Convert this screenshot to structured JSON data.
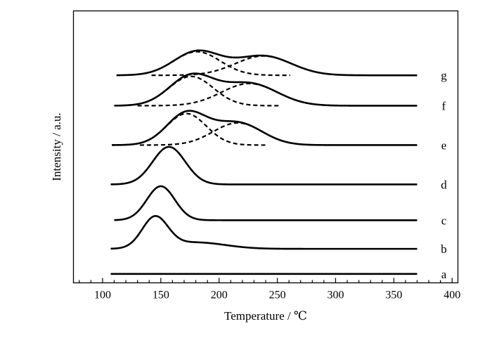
{
  "chart_data": {
    "type": "line",
    "xlabel": "Temperature / ℃",
    "ylabel": "Intensity / a.u.",
    "xlim": [
      75,
      405
    ],
    "xticks": [
      100,
      150,
      200,
      250,
      300,
      350,
      400
    ],
    "x_minor_step": 10,
    "ylim": [
      0,
      7.6
    ],
    "grid": false,
    "series": [
      {
        "name": "a",
        "baseline": 0.25,
        "x_start": 107,
        "x_end": 370,
        "peaks": []
      },
      {
        "name": "b",
        "baseline": 0.95,
        "x_start": 107,
        "x_end": 370,
        "peaks": [
          {
            "center": 145,
            "height": 0.85,
            "width": 11
          },
          {
            "center": 180,
            "height": 0.18,
            "width": 25
          }
        ]
      },
      {
        "name": "c",
        "baseline": 1.75,
        "x_start": 110,
        "x_end": 370,
        "peaks": [
          {
            "center": 150,
            "height": 0.95,
            "width": 12
          }
        ]
      },
      {
        "name": "d",
        "baseline": 2.75,
        "x_start": 107,
        "x_end": 370,
        "peaks": [
          {
            "center": 157,
            "height": 1.05,
            "width": 14
          }
        ]
      },
      {
        "name": "e",
        "baseline": 3.85,
        "x_start": 108,
        "x_end": 370,
        "peaks": [
          {
            "center": 172,
            "height": 0.88,
            "width": 17
          },
          {
            "center": 216,
            "height": 0.62,
            "width": 21
          }
        ]
      },
      {
        "name": "f",
        "baseline": 4.95,
        "x_start": 110,
        "x_end": 370,
        "peaks": [
          {
            "center": 176,
            "height": 0.82,
            "width": 19
          },
          {
            "center": 226,
            "height": 0.62,
            "width": 24
          }
        ]
      },
      {
        "name": "g",
        "baseline": 5.8,
        "x_start": 112,
        "x_end": 370,
        "peaks": [
          {
            "center": 181,
            "height": 0.66,
            "width": 20
          },
          {
            "center": 238,
            "height": 0.54,
            "width": 24
          }
        ]
      }
    ]
  }
}
